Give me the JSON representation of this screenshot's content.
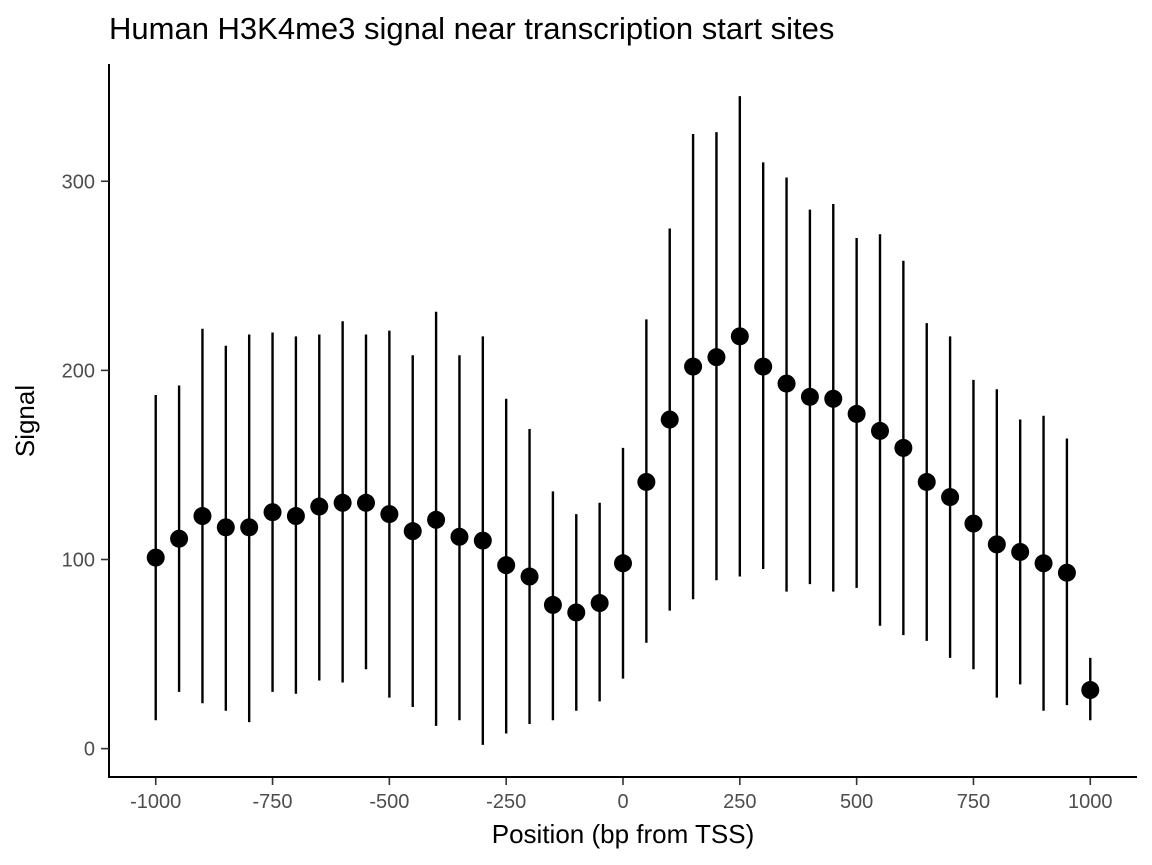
{
  "chart_data": {
    "type": "scatter",
    "title": "Human H3K4me3 signal near transcription start sites",
    "xlabel": "Position (bp from TSS)",
    "ylabel": "Signal",
    "xlim": [
      -1100,
      1100
    ],
    "ylim": [
      -15,
      362
    ],
    "x_ticks": [
      -1000,
      -750,
      -500,
      -250,
      0,
      250,
      500,
      750,
      1000
    ],
    "x_tick_labels": [
      "-1000",
      "-750",
      "-500",
      "-250",
      "0",
      "250",
      "500",
      "750",
      "1000"
    ],
    "y_ticks": [
      0,
      100,
      200,
      300
    ],
    "y_tick_labels": [
      "0",
      "100",
      "200",
      "300"
    ],
    "grid": false,
    "error_bars": true,
    "points": [
      {
        "x": -1000,
        "y": 101,
        "ymin": 15,
        "ymax": 187
      },
      {
        "x": -950,
        "y": 111,
        "ymin": 30,
        "ymax": 192
      },
      {
        "x": -900,
        "y": 123,
        "ymin": 24,
        "ymax": 222
      },
      {
        "x": -850,
        "y": 117,
        "ymin": 20,
        "ymax": 213
      },
      {
        "x": -800,
        "y": 117,
        "ymin": 14,
        "ymax": 219
      },
      {
        "x": -750,
        "y": 125,
        "ymin": 30,
        "ymax": 220
      },
      {
        "x": -700,
        "y": 123,
        "ymin": 29,
        "ymax": 218
      },
      {
        "x": -650,
        "y": 128,
        "ymin": 36,
        "ymax": 219
      },
      {
        "x": -600,
        "y": 130,
        "ymin": 35,
        "ymax": 226
      },
      {
        "x": -550,
        "y": 130,
        "ymin": 42,
        "ymax": 219
      },
      {
        "x": -500,
        "y": 124,
        "ymin": 27,
        "ymax": 221
      },
      {
        "x": -450,
        "y": 115,
        "ymin": 22,
        "ymax": 208
      },
      {
        "x": -400,
        "y": 121,
        "ymin": 12,
        "ymax": 231
      },
      {
        "x": -350,
        "y": 112,
        "ymin": 15,
        "ymax": 208
      },
      {
        "x": -300,
        "y": 110,
        "ymin": 2,
        "ymax": 218
      },
      {
        "x": -250,
        "y": 97,
        "ymin": 8,
        "ymax": 185
      },
      {
        "x": -200,
        "y": 91,
        "ymin": 13,
        "ymax": 169
      },
      {
        "x": -150,
        "y": 76,
        "ymin": 15,
        "ymax": 136
      },
      {
        "x": -100,
        "y": 72,
        "ymin": 20,
        "ymax": 124
      },
      {
        "x": -50,
        "y": 77,
        "ymin": 25,
        "ymax": 130
      },
      {
        "x": 0,
        "y": 98,
        "ymin": 37,
        "ymax": 159
      },
      {
        "x": 50,
        "y": 141,
        "ymin": 56,
        "ymax": 227
      },
      {
        "x": 100,
        "y": 174,
        "ymin": 73,
        "ymax": 275
      },
      {
        "x": 150,
        "y": 202,
        "ymin": 79,
        "ymax": 325
      },
      {
        "x": 200,
        "y": 207,
        "ymin": 89,
        "ymax": 326
      },
      {
        "x": 250,
        "y": 218,
        "ymin": 91,
        "ymax": 345
      },
      {
        "x": 300,
        "y": 202,
        "ymin": 95,
        "ymax": 310
      },
      {
        "x": 350,
        "y": 193,
        "ymin": 83,
        "ymax": 302
      },
      {
        "x": 400,
        "y": 186,
        "ymin": 87,
        "ymax": 285
      },
      {
        "x": 450,
        "y": 185,
        "ymin": 83,
        "ymax": 288
      },
      {
        "x": 500,
        "y": 177,
        "ymin": 85,
        "ymax": 270
      },
      {
        "x": 550,
        "y": 168,
        "ymin": 65,
        "ymax": 272
      },
      {
        "x": 600,
        "y": 159,
        "ymin": 60,
        "ymax": 258
      },
      {
        "x": 650,
        "y": 141,
        "ymin": 57,
        "ymax": 225
      },
      {
        "x": 700,
        "y": 133,
        "ymin": 48,
        "ymax": 218
      },
      {
        "x": 750,
        "y": 119,
        "ymin": 42,
        "ymax": 195
      },
      {
        "x": 800,
        "y": 108,
        "ymin": 27,
        "ymax": 190
      },
      {
        "x": 850,
        "y": 104,
        "ymin": 34,
        "ymax": 174
      },
      {
        "x": 900,
        "y": 98,
        "ymin": 20,
        "ymax": 176
      },
      {
        "x": 950,
        "y": 93,
        "ymin": 23,
        "ymax": 164
      },
      {
        "x": 1000,
        "y": 31,
        "ymin": 15,
        "ymax": 48
      }
    ]
  }
}
